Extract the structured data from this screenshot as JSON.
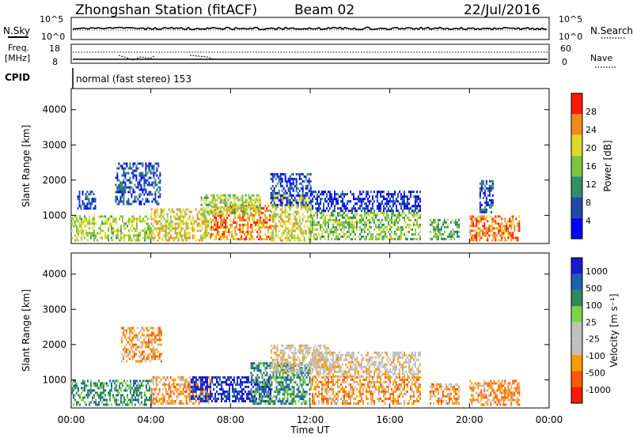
{
  "header": {
    "station": "Zhongshan Station (fitACF)",
    "beam": "Beam 02",
    "date": "22/Jul/2016"
  },
  "top_panels": {
    "nsky_label": "N.Sky",
    "nsearch_label": "N.Search",
    "nsky_ticks": [
      "10^5",
      "10^0"
    ],
    "nsearch_ticks": [
      "10^5",
      "10^0"
    ],
    "freq_label": [
      "Freq.",
      "[MHz]"
    ],
    "freq_ticks": [
      "18",
      "8"
    ],
    "nave_label": "Nave",
    "nave_ticks": [
      "60",
      "0"
    ],
    "cpid_label": "CPID",
    "cpid_text": "normal (fast stereo) 153"
  },
  "colors": {
    "power": [
      "#0000ff",
      "#1f4aa8",
      "#2f8f6b",
      "#7cc442",
      "#e0d82a",
      "#f08a1a",
      "#ff1a00"
    ],
    "velocity": [
      "#ff1a00",
      "#ff5a00",
      "#ff9a00",
      "#c0c0c0",
      "#c0c0c0",
      "#7fd14a",
      "#2e8b57",
      "#1f5fb0",
      "#1a1acd"
    ]
  },
  "chart_data": [
    {
      "type": "heatmap",
      "title": "Power",
      "ylabel": "Slant Range [km]",
      "y_ticks": [
        1000,
        2000,
        3000,
        4000
      ],
      "ylim": [
        200,
        4600
      ],
      "colorbar_label": "Power [dB]",
      "colorbar_ticks": [
        4,
        8,
        12,
        16,
        20,
        24,
        28
      ],
      "colorbar_range": [
        0,
        32
      ],
      "x_ticks": [
        "00:00",
        "04:00",
        "08:00",
        "12:00",
        "16:00",
        "20:00",
        "00:00"
      ],
      "xlim_hours": [
        0,
        24
      ],
      "regions": [
        {
          "t": [
            0,
            4
          ],
          "r": [
            300,
            1000
          ],
          "level": 18
        },
        {
          "t": [
            0.3,
            1.2
          ],
          "r": [
            1200,
            1700
          ],
          "level": 6
        },
        {
          "t": [
            2.2,
            4.5
          ],
          "r": [
            1300,
            2500
          ],
          "level": 7
        },
        {
          "t": [
            4,
            7
          ],
          "r": [
            300,
            1200
          ],
          "level": 21
        },
        {
          "t": [
            7,
            10
          ],
          "r": [
            300,
            1300
          ],
          "level": 25
        },
        {
          "t": [
            6.5,
            9.5
          ],
          "r": [
            1000,
            1600
          ],
          "level": 17
        },
        {
          "t": [
            10,
            12
          ],
          "r": [
            300,
            1600
          ],
          "level": 20
        },
        {
          "t": [
            10,
            12
          ],
          "r": [
            1300,
            2200
          ],
          "level": 6
        },
        {
          "t": [
            12,
            17.5
          ],
          "r": [
            1100,
            1700
          ],
          "level": 5
        },
        {
          "t": [
            12,
            17.5
          ],
          "r": [
            300,
            1100
          ],
          "level": 16
        },
        {
          "t": [
            18,
            19.5
          ],
          "r": [
            300,
            900
          ],
          "level": 14
        },
        {
          "t": [
            20,
            22.5
          ],
          "r": [
            300,
            1000
          ],
          "level": 26
        },
        {
          "t": [
            20.5,
            21.2
          ],
          "r": [
            1100,
            2000
          ],
          "level": 6
        }
      ]
    },
    {
      "type": "heatmap",
      "title": "Velocity",
      "ylabel": "Slant Range [km]",
      "y_ticks": [
        1000,
        2000,
        3000,
        4000
      ],
      "ylim": [
        200,
        4600
      ],
      "colorbar_label": "Velocity [m s⁻¹]",
      "colorbar_ticks": [
        1000,
        500,
        100,
        25,
        -25,
        -100,
        -500,
        -1000
      ],
      "x_ticks": [
        "00:00",
        "04:00",
        "08:00",
        "12:00",
        "16:00",
        "20:00",
        "00:00"
      ],
      "xlabel": "Time UT",
      "xlim_hours": [
        0,
        24
      ],
      "regions": [
        {
          "t": [
            0,
            4
          ],
          "r": [
            300,
            1000
          ],
          "class": 6
        },
        {
          "t": [
            2.5,
            4.5
          ],
          "r": [
            1500,
            2500
          ],
          "class": 2
        },
        {
          "t": [
            4,
            7
          ],
          "r": [
            300,
            1100
          ],
          "class": 2
        },
        {
          "t": [
            6,
            10
          ],
          "r": [
            400,
            1100
          ],
          "class": 8
        },
        {
          "t": [
            9,
            12
          ],
          "r": [
            300,
            1500
          ],
          "class": 6
        },
        {
          "t": [
            10,
            13
          ],
          "r": [
            1200,
            2000
          ],
          "class": 3
        },
        {
          "t": [
            12,
            17.5
          ],
          "r": [
            1100,
            1800
          ],
          "class": 3
        },
        {
          "t": [
            12,
            17.5
          ],
          "r": [
            300,
            1100
          ],
          "class": 2
        },
        {
          "t": [
            18,
            19.5
          ],
          "r": [
            300,
            900
          ],
          "class": 2
        },
        {
          "t": [
            20,
            22.5
          ],
          "r": [
            300,
            1000
          ],
          "class": 2
        }
      ]
    }
  ]
}
